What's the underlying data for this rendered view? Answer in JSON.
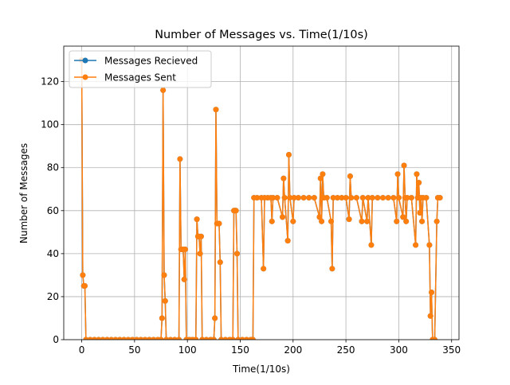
{
  "chart_data": {
    "type": "line",
    "title": "Number of Messages vs. Time(1/10s)",
    "x_label": "Time(1/10s)",
    "y_label": "Number of Messages",
    "x": [
      0,
      1,
      2,
      3,
      4,
      8,
      12,
      16,
      20,
      24,
      28,
      32,
      36,
      40,
      44,
      48,
      52,
      56,
      60,
      64,
      68,
      72,
      75,
      76,
      77,
      78,
      79,
      80,
      84,
      88,
      92,
      93,
      94,
      95,
      96,
      97,
      98,
      99,
      102,
      105,
      108,
      109,
      110,
      111,
      112,
      113,
      114,
      118,
      122,
      125,
      126,
      127,
      128,
      129,
      130,
      131,
      132,
      136,
      140,
      143,
      144,
      145,
      146,
      147,
      148,
      152,
      156,
      160,
      162,
      163,
      166,
      170,
      172,
      173,
      176,
      179,
      180,
      181,
      185,
      190,
      191,
      192,
      195,
      196,
      197,
      200,
      201,
      205,
      210,
      215,
      220,
      225,
      226,
      227,
      228,
      229,
      232,
      236,
      237,
      238,
      242,
      246,
      250,
      253,
      254,
      255,
      260,
      265,
      266,
      270,
      271,
      274,
      275,
      280,
      285,
      290,
      295,
      298,
      299,
      300,
      304,
      305,
      306,
      307,
      308,
      312,
      316,
      317,
      318,
      319,
      320,
      321,
      322,
      323,
      326,
      329,
      330,
      331,
      332,
      334,
      336,
      337,
      339
    ],
    "series": [
      {
        "name": "Messages Recieved",
        "color": "#1f77b4",
        "values": [
          130,
          30,
          25,
          25,
          0,
          0,
          0,
          0,
          0,
          0,
          0,
          0,
          0,
          0,
          0,
          0,
          0,
          0,
          0,
          0,
          0,
          0,
          0,
          10,
          116,
          30,
          18,
          0,
          0,
          0,
          0,
          84,
          42,
          42,
          42,
          28,
          42,
          0,
          0,
          0,
          0,
          56,
          48,
          48,
          40,
          48,
          0,
          0,
          0,
          0,
          10,
          107,
          54,
          54,
          54,
          36,
          0,
          0,
          0,
          0,
          60,
          60,
          60,
          40,
          0,
          0,
          0,
          0,
          0,
          66,
          66,
          66,
          33,
          66,
          66,
          66,
          55,
          66,
          66,
          57,
          75,
          66,
          46,
          86,
          66,
          55,
          66,
          66,
          66,
          66,
          66,
          57,
          75,
          55,
          77,
          66,
          66,
          55,
          33,
          66,
          66,
          66,
          66,
          56,
          76,
          66,
          66,
          55,
          66,
          55,
          66,
          44,
          66,
          66,
          66,
          66,
          66,
          55,
          77,
          66,
          57,
          81,
          66,
          55,
          66,
          66,
          44,
          77,
          66,
          73,
          59,
          66,
          55,
          66,
          66,
          44,
          11,
          22,
          0,
          0,
          55,
          66,
          66
        ]
      },
      {
        "name": "Messages Sent",
        "color": "#ff7f0e",
        "values": [
          130,
          30,
          25,
          25,
          0,
          0,
          0,
          0,
          0,
          0,
          0,
          0,
          0,
          0,
          0,
          0,
          0,
          0,
          0,
          0,
          0,
          0,
          0,
          10,
          116,
          30,
          18,
          0,
          0,
          0,
          0,
          84,
          42,
          42,
          42,
          28,
          42,
          0,
          0,
          0,
          0,
          56,
          48,
          48,
          40,
          48,
          0,
          0,
          0,
          0,
          10,
          107,
          54,
          54,
          54,
          36,
          0,
          0,
          0,
          0,
          60,
          60,
          60,
          40,
          0,
          0,
          0,
          0,
          0,
          66,
          66,
          66,
          33,
          66,
          66,
          66,
          55,
          66,
          66,
          57,
          75,
          66,
          46,
          86,
          66,
          55,
          66,
          66,
          66,
          66,
          66,
          57,
          75,
          55,
          77,
          66,
          66,
          55,
          33,
          66,
          66,
          66,
          66,
          56,
          76,
          66,
          66,
          55,
          66,
          55,
          66,
          44,
          66,
          66,
          66,
          66,
          66,
          55,
          77,
          66,
          57,
          81,
          66,
          55,
          66,
          66,
          44,
          77,
          66,
          73,
          59,
          66,
          55,
          66,
          66,
          44,
          11,
          22,
          0,
          0,
          55,
          66,
          66
        ]
      }
    ],
    "xlim": [
      -17,
      357
    ],
    "ylim": [
      0,
      136.5
    ],
    "xticks": [
      0,
      50,
      100,
      150,
      200,
      250,
      300,
      350
    ],
    "yticks": [
      0,
      20,
      40,
      60,
      80,
      100,
      120
    ],
    "grid": true,
    "legend": "upper-left"
  }
}
